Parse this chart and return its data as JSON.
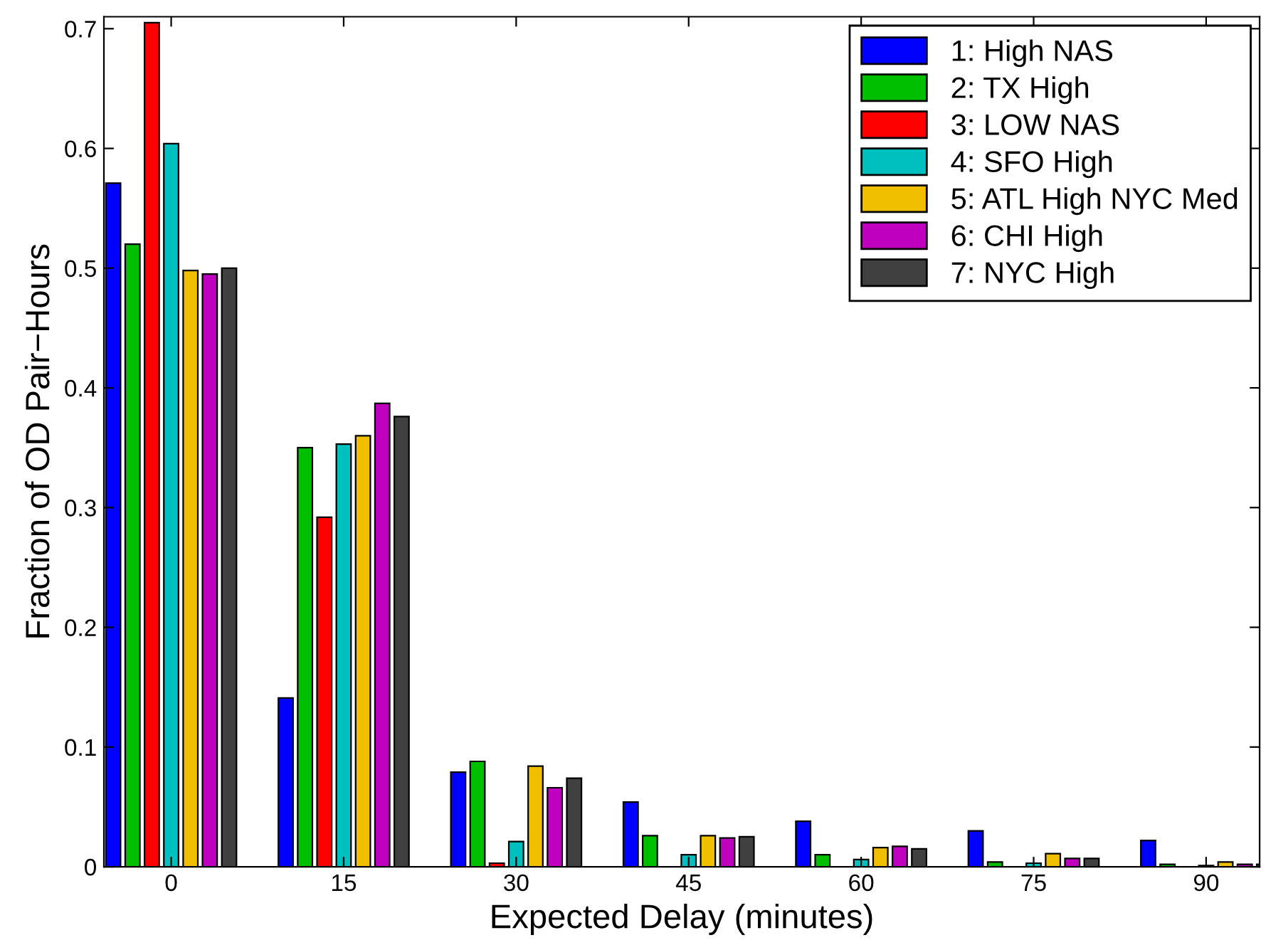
{
  "chart_data": {
    "type": "bar",
    "xlabel": "Expected Delay (minutes)",
    "ylabel": "Fraction of OD Pair−Hours",
    "categories": [
      "0",
      "15",
      "30",
      "45",
      "60",
      "75",
      "90"
    ],
    "ylim": [
      0,
      0.71
    ],
    "yticks": [
      0,
      0.1,
      0.2,
      0.3,
      0.4,
      0.5,
      0.6,
      0.7
    ],
    "legend": "top right",
    "grid": false,
    "series": [
      {
        "name": "1: High NAS",
        "color": "#0000ff",
        "values": [
          0.571,
          0.141,
          0.079,
          0.054,
          0.038,
          0.03,
          0.022
        ]
      },
      {
        "name": "2: TX High",
        "color": "#00bf00",
        "values": [
          0.52,
          0.35,
          0.088,
          0.026,
          0.01,
          0.004,
          0.002
        ]
      },
      {
        "name": "3: LOW NAS",
        "color": "#ff0000",
        "values": [
          0.705,
          0.292,
          0.003,
          null,
          null,
          null,
          null
        ]
      },
      {
        "name": "4: SFO High",
        "color": "#00bfbf",
        "values": [
          0.604,
          0.353,
          0.021,
          0.01,
          0.006,
          0.003,
          0.001
        ]
      },
      {
        "name": "5: ATL High NYC Med",
        "color": "#f0bf00",
        "values": [
          0.498,
          0.36,
          0.084,
          0.026,
          0.016,
          0.011,
          0.004
        ]
      },
      {
        "name": "6: CHI High",
        "color": "#bf00bf",
        "values": [
          0.495,
          0.387,
          0.066,
          0.024,
          0.017,
          0.007,
          0.002
        ]
      },
      {
        "name": "7: NYC High",
        "color": "#404040",
        "values": [
          0.5,
          0.376,
          0.074,
          0.025,
          0.015,
          0.007,
          0.002
        ]
      }
    ]
  }
}
